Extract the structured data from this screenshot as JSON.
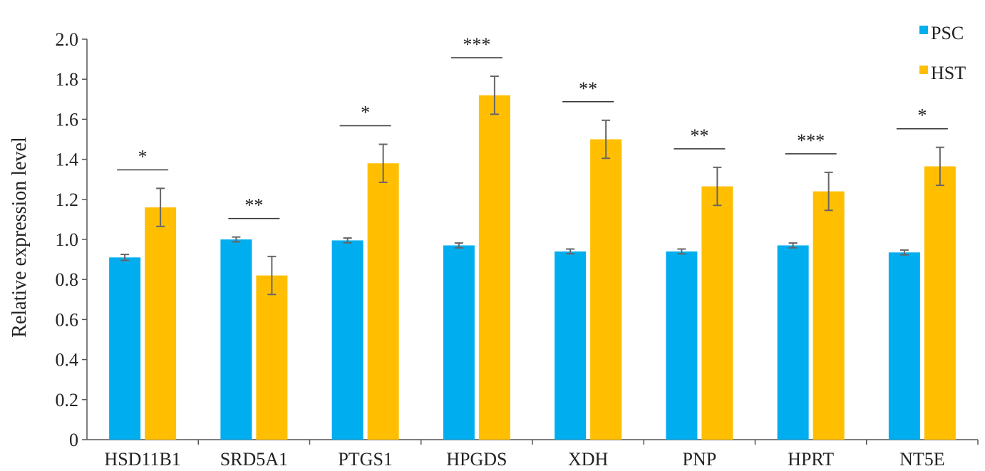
{
  "chart_data": {
    "type": "bar",
    "title": "",
    "xlabel": "",
    "ylabel": "Relative expression level",
    "ylim": [
      0,
      2.0
    ],
    "yticks": [
      "0",
      "0.2",
      "0.4",
      "0.6",
      "0.8",
      "1.0",
      "1.2",
      "1.4",
      "1.6",
      "1.8",
      "2.0"
    ],
    "categories": [
      "HSD11B1",
      "SRD5A1",
      "PTGS1",
      "HPGDS",
      "XDH",
      "PNP",
      "HPRT",
      "NT5E"
    ],
    "series": [
      {
        "name": "PSC",
        "color": "#00AEEF",
        "values": [
          0.91,
          1.0,
          0.995,
          0.97,
          0.94,
          0.94,
          0.97,
          0.935
        ],
        "errors": [
          0.015,
          0.012,
          0.012,
          0.012,
          0.012,
          0.012,
          0.012,
          0.012
        ]
      },
      {
        "name": "HST",
        "color": "#FFBF00",
        "values": [
          1.16,
          0.82,
          1.38,
          1.72,
          1.5,
          1.265,
          1.24,
          1.365
        ],
        "errors": [
          0.095,
          0.095,
          0.095,
          0.095,
          0.095,
          0.095,
          0.095,
          0.095
        ]
      }
    ],
    "significance": [
      "*",
      "**",
      "*",
      "***",
      "**",
      "**",
      "***",
      "*"
    ],
    "grid": false,
    "legend_position": "top-right"
  }
}
